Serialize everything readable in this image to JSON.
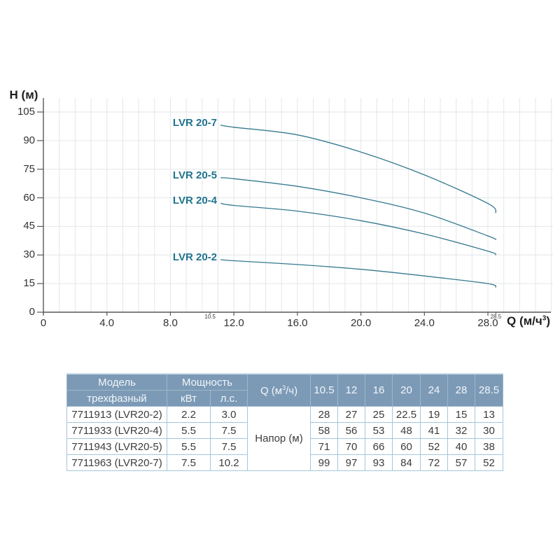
{
  "chart": {
    "y_axis_title": "H (м)",
    "x_axis_title": {
      "pre": "Q (м/ч",
      "sup": "3",
      "post": ")"
    },
    "y_tick_values": [
      0,
      15,
      30,
      45,
      60,
      75,
      90,
      105
    ],
    "x_tick_values": [
      0,
      4,
      8,
      12,
      16,
      20,
      24,
      28
    ],
    "x_tick_labels": [
      "0",
      "4.0",
      "8.0",
      "12.0",
      "16.0",
      "20.0",
      "24.0",
      "28.0"
    ],
    "x_minor_labels": [
      {
        "q": 10.5,
        "label": "10.5"
      },
      {
        "q": 28.5,
        "label": "28.5"
      }
    ],
    "colors": {
      "curve": "#35798f",
      "curve_label": "#1f748e",
      "grid": "#e3e6e9",
      "axis": "#55595c",
      "tick_text": "#333333",
      "table_header_bg": "#7c9ab6",
      "table_border": "#a6c6da"
    }
  },
  "chart_data": {
    "type": "line",
    "title": "",
    "xlabel": "Q (м/ч³)",
    "ylabel": "H (м)",
    "x": [
      10.5,
      12,
      16,
      20,
      24,
      28,
      28.5
    ],
    "series": [
      {
        "name": "LVR 20-7",
        "values": [
          99,
          97,
          93,
          84,
          72,
          57,
          52
        ]
      },
      {
        "name": "LVR 20-5",
        "values": [
          71,
          70,
          66,
          60,
          52,
          40,
          38
        ]
      },
      {
        "name": "LVR 20-4",
        "values": [
          58,
          56,
          53,
          48,
          41,
          32,
          30
        ]
      },
      {
        "name": "LVR 20-2",
        "values": [
          28,
          27,
          25,
          22.5,
          19,
          15,
          13
        ]
      }
    ],
    "xlim": [
      0,
      32
    ],
    "ylim": [
      0,
      112.5
    ],
    "grid": true,
    "legend_position": "inline-labels-left-of-curves"
  },
  "table": {
    "header": {
      "model": "Модель",
      "model_sub": "трехфазный",
      "power": "Мощность",
      "kw": "кВт",
      "hp": "л.с.",
      "q_label": {
        "pre": "Q (м",
        "sup": "3",
        "post": "/ч)"
      },
      "q_values": [
        "10.5",
        "12",
        "16",
        "20",
        "24",
        "28",
        "28.5"
      ]
    },
    "napor_label": "Напор (м)",
    "rows": [
      {
        "model": "7711913 (LVR20-2)",
        "kw": "2.2",
        "hp": "3.0",
        "values": [
          "28",
          "27",
          "25",
          "22.5",
          "19",
          "15",
          "13"
        ]
      },
      {
        "model": "7711933 (LVR20-4)",
        "kw": "5.5",
        "hp": "7.5",
        "values": [
          "58",
          "56",
          "53",
          "48",
          "41",
          "32",
          "30"
        ]
      },
      {
        "model": "7711943 (LVR20-5)",
        "kw": "5.5",
        "hp": "7.5",
        "values": [
          "71",
          "70",
          "66",
          "60",
          "52",
          "40",
          "38"
        ]
      },
      {
        "model": "7711963 (LVR20-7)",
        "kw": "7.5",
        "hp": "10.2",
        "values": [
          "99",
          "97",
          "93",
          "84",
          "72",
          "57",
          "52"
        ]
      }
    ]
  }
}
